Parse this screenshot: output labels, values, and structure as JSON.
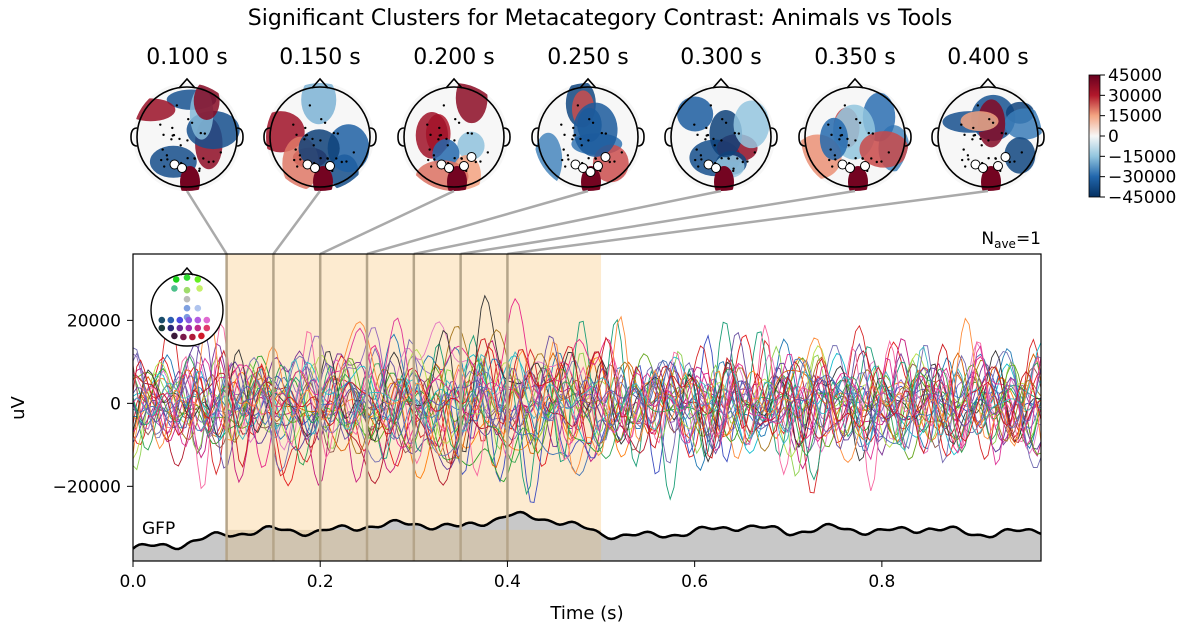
{
  "title": "Significant Clusters for Metacategory Contrast: Animals vs Tools",
  "topomaps": [
    {
      "label": "0.100 s",
      "time": 0.1
    },
    {
      "label": "0.150 s",
      "time": 0.15
    },
    {
      "label": "0.200 s",
      "time": 0.2
    },
    {
      "label": "0.250 s",
      "time": 0.25
    },
    {
      "label": "0.300 s",
      "time": 0.3
    },
    {
      "label": "0.350 s",
      "time": 0.35
    },
    {
      "label": "0.400 s",
      "time": 0.4
    }
  ],
  "colorbar": {
    "ticks": [
      "45000",
      "30000",
      "15000",
      "0",
      "−15000",
      "−30000",
      "−45000"
    ],
    "values": [
      45000,
      30000,
      15000,
      0,
      -15000,
      -30000,
      -45000
    ],
    "min": -45000,
    "max": 45000,
    "colors": [
      "#053061",
      "#2166ac",
      "#92c5de",
      "#f7f7f7",
      "#f4a582",
      "#b2182b",
      "#67001f"
    ]
  },
  "nave": {
    "prefix": "N",
    "sub": "ave",
    "suffix": "=1"
  },
  "gfp_label": "GFP",
  "chart_data": {
    "type": "line",
    "title": "Significant Clusters for Metacategory Contrast: Animals vs Tools",
    "xlabel": "Time (s)",
    "ylabel": "uV",
    "xlim": [
      0.0,
      0.97
    ],
    "ylim": [
      -38000,
      36000
    ],
    "xticks": [
      0.0,
      0.2,
      0.4,
      0.6,
      0.8
    ],
    "xtick_labels": [
      "0.0",
      "0.2",
      "0.4",
      "0.6",
      "0.8"
    ],
    "yticks": [
      20000,
      0,
      -20000
    ],
    "ytick_labels": [
      "20000",
      "0",
      "−20000"
    ],
    "significant_window": [
      0.1,
      0.5
    ],
    "window_color": "#fdebd0",
    "marker_times": [
      0.1,
      0.15,
      0.2,
      0.25,
      0.3,
      0.35,
      0.4
    ],
    "n_channels": 32,
    "series_note": "32 EEG channel traces, approx amplitude range -30000 to 32000 uV",
    "gfp": {
      "x": [
        0.0,
        0.05,
        0.1,
        0.15,
        0.2,
        0.25,
        0.3,
        0.35,
        0.4,
        0.45,
        0.5,
        0.55,
        0.6,
        0.65,
        0.7,
        0.75,
        0.8,
        0.85,
        0.9,
        0.95,
        0.97
      ],
      "values": [
        -35000,
        -34000,
        -31500,
        -30500,
        -31000,
        -29500,
        -29000,
        -30000,
        -27000,
        -28000,
        -31500,
        -32000,
        -31000,
        -29500,
        -31000,
        -30000,
        -31000,
        -30000,
        -31500,
        -31000,
        -30500
      ]
    }
  }
}
